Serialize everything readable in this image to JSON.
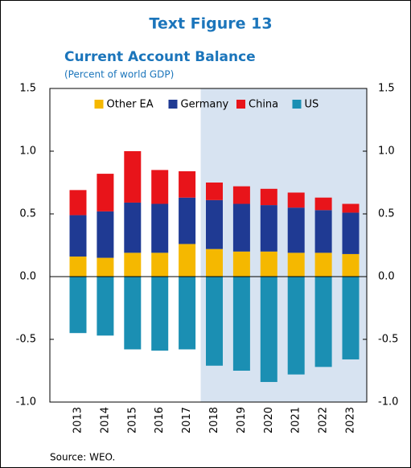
{
  "chart_data": {
    "type": "stacked_bar",
    "title": "Text Figure 13",
    "subtitle": "Current Account Balance",
    "unit_label": "(Percent of world GDP)",
    "source": "Source: WEO.",
    "categories": [
      "2013",
      "2014",
      "2015",
      "2016",
      "2017",
      "2018",
      "2019",
      "2020",
      "2021",
      "2022",
      "2023"
    ],
    "series": [
      {
        "name": "Other EA",
        "color": "#f5b800",
        "values": [
          0.16,
          0.15,
          0.19,
          0.19,
          0.26,
          0.22,
          0.2,
          0.2,
          0.19,
          0.19,
          0.18
        ]
      },
      {
        "name": "Germany",
        "color": "#1f3a93",
        "values": [
          0.33,
          0.37,
          0.4,
          0.39,
          0.37,
          0.39,
          0.38,
          0.37,
          0.36,
          0.34,
          0.33
        ]
      },
      {
        "name": "China",
        "color": "#e8141a",
        "values": [
          0.2,
          0.3,
          0.41,
          0.27,
          0.21,
          0.14,
          0.14,
          0.13,
          0.12,
          0.1,
          0.07
        ]
      },
      {
        "name": "US",
        "color": "#1b8fb3",
        "values": [
          -0.45,
          -0.47,
          -0.58,
          -0.59,
          -0.58,
          -0.71,
          -0.75,
          -0.84,
          -0.78,
          -0.72,
          -0.66
        ]
      }
    ],
    "ylim": [
      -1,
      1.5
    ],
    "yticks": [
      {
        "value": 1.5,
        "label": "1.5"
      },
      {
        "value": 1,
        "label": "1.0"
      },
      0.5,
      {
        "value": 0,
        "label": "0.0"
      },
      -0.5,
      {
        "value": -1,
        "label": "-1.0"
      }
    ],
    "y2lim": [
      -1,
      1.5
    ],
    "y2ticks": [
      {
        "value": 1.5,
        "label": "1.5"
      },
      {
        "value": 1,
        "label": "1.0"
      },
      0.5,
      {
        "value": 0,
        "label": "0.0"
      },
      -0.5,
      {
        "value": -1,
        "label": "-1.0"
      }
    ],
    "legend": "upper center",
    "shaded_region": {
      "start": "2018",
      "color": "#d7e3f1"
    }
  }
}
